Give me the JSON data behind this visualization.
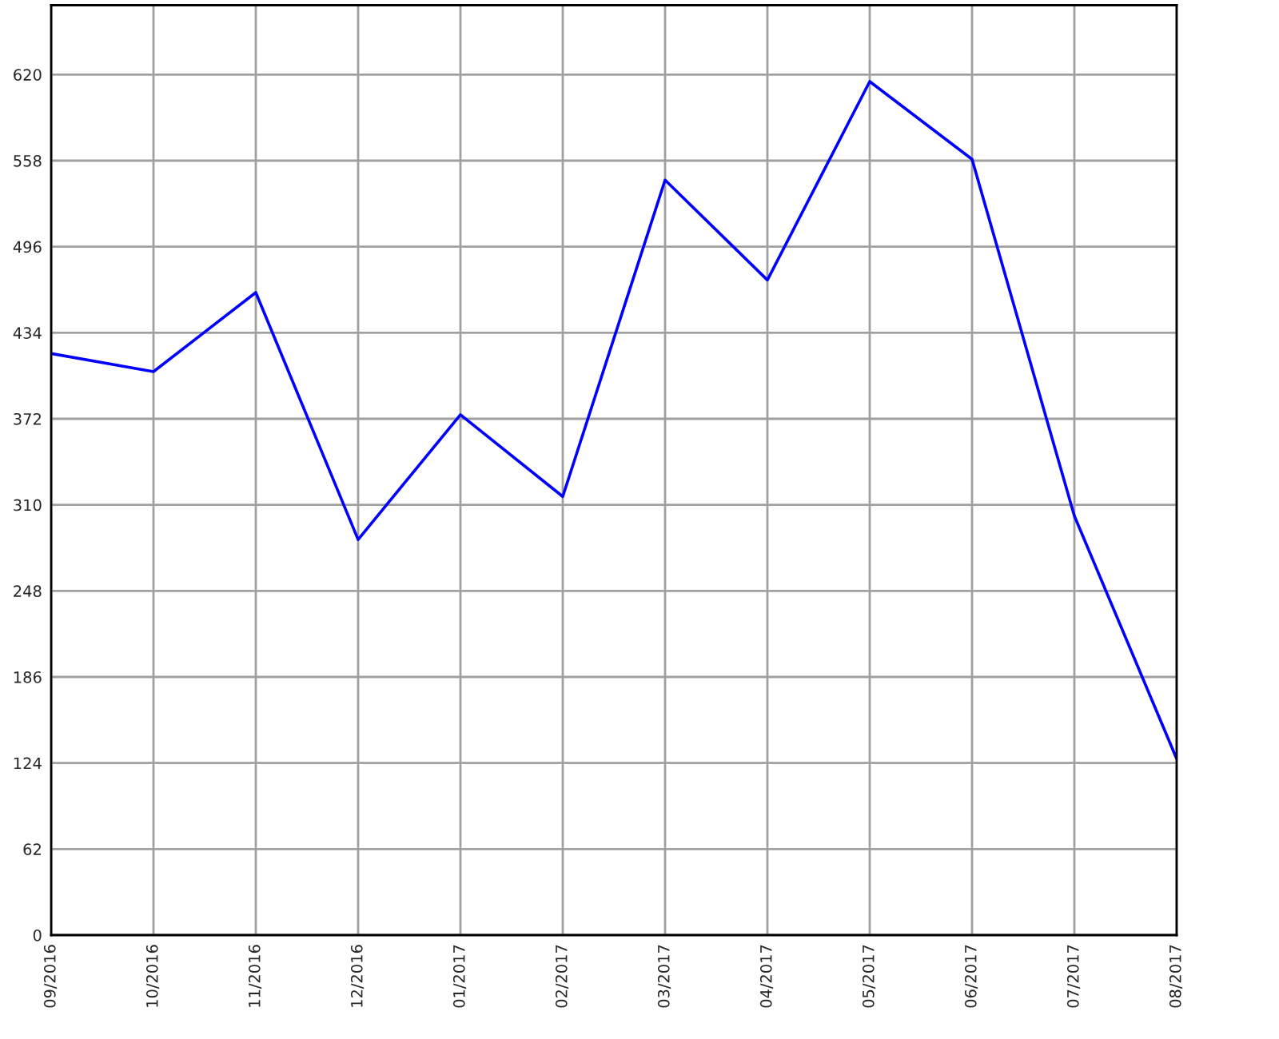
{
  "chart_data": {
    "type": "line",
    "categories": [
      "09/2016",
      "10/2016",
      "11/2016",
      "12/2016",
      "01/2017",
      "02/2017",
      "03/2017",
      "04/2017",
      "05/2017",
      "06/2017",
      "07/2017",
      "08/2017"
    ],
    "series": [
      {
        "color": "#0000ff",
        "values": [
          419,
          406,
          463,
          285,
          375,
          316,
          544,
          472,
          615,
          559,
          302,
          127
        ]
      }
    ],
    "ylim": [
      0,
      670
    ],
    "yticks": [
      0,
      62,
      124,
      186,
      248,
      310,
      372,
      434,
      496,
      558,
      620
    ],
    "grid": true,
    "marker": "none",
    "line_style": "solid"
  }
}
